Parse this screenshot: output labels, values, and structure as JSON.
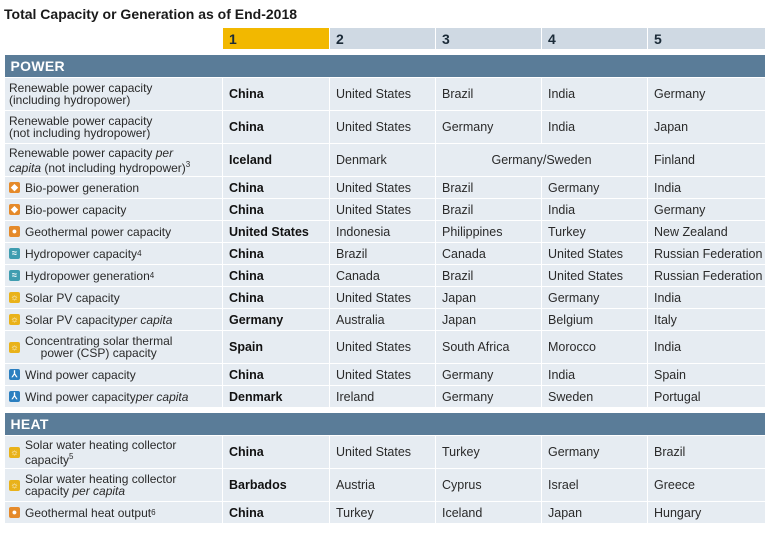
{
  "title": "Total Capacity or Generation as of End-2018",
  "ranks": [
    "1",
    "2",
    "3",
    "4",
    "5"
  ],
  "sections": {
    "power": "POWER",
    "heat": "HEAT"
  },
  "power_rows": [
    {
      "label": "Renewable power capacity (including hydropower)",
      "icon": "",
      "cells": [
        "China",
        "United States",
        "Brazil",
        "India",
        "Germany"
      ]
    },
    {
      "label": "Renewable power capacity (not including hydropower)",
      "icon": "",
      "cells": [
        "China",
        "United States",
        "Germany",
        "India",
        "Japan"
      ]
    },
    {
      "label": "Renewable power capacity per capita (not including hydropower)³",
      "icon": "",
      "cells": [
        "Iceland",
        "Denmark",
        "Germany/Sweden",
        "Finland"
      ]
    },
    {
      "label": "Bio-power generation",
      "icon": "bio-power-icon",
      "cells": [
        "China",
        "United States",
        "Brazil",
        "Germany",
        "India"
      ]
    },
    {
      "label": "Bio-power capacity",
      "icon": "bio-power-icon",
      "cells": [
        "China",
        "United States",
        "Brazil",
        "India",
        "Germany"
      ]
    },
    {
      "label": "Geothermal power capacity",
      "icon": "geothermal-icon",
      "cells": [
        "United States",
        "Indonesia",
        "Philippines",
        "Turkey",
        "New Zealand"
      ]
    },
    {
      "label": "Hydropower capacity⁴",
      "icon": "hydropower-icon",
      "cells": [
        "China",
        "Brazil",
        "Canada",
        "United States",
        "Russian Federation"
      ]
    },
    {
      "label": "Hydropower generation⁴",
      "icon": "hydropower-icon",
      "cells": [
        "China",
        "Canada",
        "Brazil",
        "United States",
        "Russian Federation"
      ]
    },
    {
      "label": "Solar PV capacity",
      "icon": "solar-icon",
      "cells": [
        "China",
        "United States",
        "Japan",
        "Germany",
        "India"
      ]
    },
    {
      "label": "Solar PV capacity per capita",
      "icon": "solar-icon",
      "cells": [
        "Germany",
        "Australia",
        "Japan",
        "Belgium",
        "Italy"
      ]
    },
    {
      "label": "Concentrating solar thermal power (CSP) capacity",
      "icon": "solar-icon",
      "cells": [
        "Spain",
        "United States",
        "South Africa",
        "Morocco",
        "India"
      ]
    },
    {
      "label": "Wind power capacity",
      "icon": "wind-icon",
      "cells": [
        "China",
        "United States",
        "Germany",
        "India",
        "Spain"
      ]
    },
    {
      "label": "Wind power capacity per capita",
      "icon": "wind-icon",
      "cells": [
        "Denmark",
        "Ireland",
        "Germany",
        "Sweden",
        "Portugal"
      ]
    }
  ],
  "heat_rows": [
    {
      "label": "Solar water heating collector capacity⁵",
      "icon": "solar-icon",
      "cells": [
        "China",
        "United States",
        "Turkey",
        "Germany",
        "Brazil"
      ]
    },
    {
      "label": "Solar water heating collector capacity per capita",
      "icon": "solar-icon",
      "cells": [
        "Barbados",
        "Austria",
        "Cyprus",
        "Israel",
        "Greece"
      ]
    },
    {
      "label": "Geothermal heat output⁶",
      "icon": "geothermal-icon",
      "cells": [
        "China",
        "Turkey",
        "Iceland",
        "Japan",
        "Hungary"
      ]
    }
  ],
  "labels": {
    "r0a": "Renewable power capacity",
    "r0b": "(including hydropower)",
    "r1a": "Renewable power capacity",
    "r1b": "(not including hydropower)",
    "r2a": "Renewable power capacity ",
    "r2a_em": "per",
    "r2b_em": "capita",
    "r2b": " (not including hydropower)",
    "r2_sup": "3",
    "r3": "Bio-power generation",
    "r4": "Bio-power capacity",
    "r5": "Geothermal power capacity",
    "r6": "Hydropower capacity",
    "r6_sup": "4",
    "r7": "Hydropower generation",
    "r7_sup": "4",
    "r8": "Solar PV capacity",
    "r9": "Solar PV capacity ",
    "r9_em": "per capita",
    "r10a": "Concentrating solar thermal",
    "r10b": "power (CSP) capacity",
    "r11": "Wind power capacity",
    "r12": "Wind power capacity ",
    "r12_em": "per capita",
    "h0a": "Solar water heating collector",
    "h0b": "capacity",
    "h0_sup": "5",
    "h1a": "Solar water heating collector",
    "h1b": "capacity ",
    "h1_em": "per capita",
    "h2": "Geothermal heat output",
    "h2_sup": "6"
  },
  "colors": {
    "rank1": "#f2b800",
    "header": "#cfd9e3",
    "section": "#5a7c98",
    "row": "#e6ecf2"
  }
}
